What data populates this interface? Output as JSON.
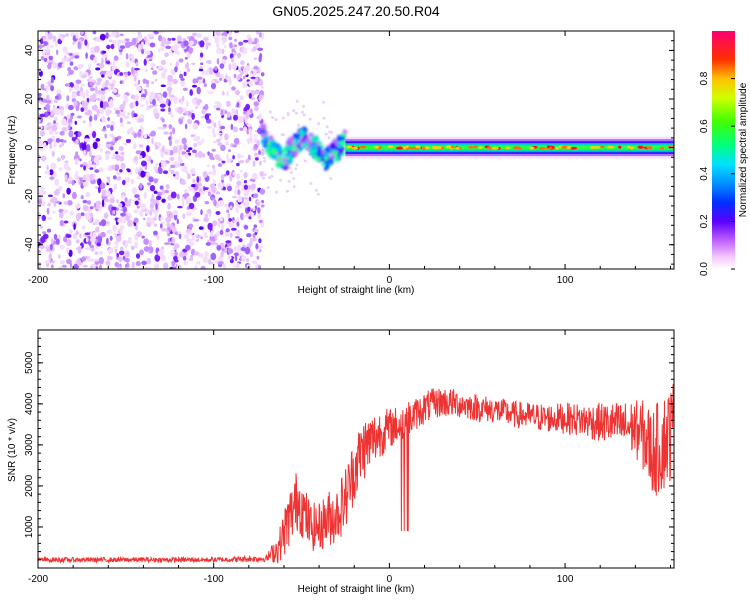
{
  "title": "GN05.2025.247.20.50.R04",
  "chart_data": [
    {
      "type": "heatmap",
      "name": "spectrogram",
      "xlabel": "Height of straight line (km)",
      "ylabel": "Frequency (Hz)",
      "xlim": [
        -200,
        162
      ],
      "ylim": [
        -50,
        48
      ],
      "xticks": [
        -200,
        -100,
        0,
        100
      ],
      "yticks": [
        -40,
        -20,
        0,
        20,
        40
      ],
      "colorbar": {
        "label": "Normalized spectral amplitude",
        "range": [
          0.0,
          1.0
        ],
        "ticks": [
          0.0,
          0.2,
          0.4,
          0.6,
          0.8
        ],
        "tick_labels": [
          "0.0",
          "0.2",
          "0.4",
          "0.6",
          "0.8"
        ]
      },
      "regions": [
        {
          "desc": "broadband noise",
          "x_range": [
            -200,
            -72
          ],
          "y_range": [
            -50,
            48
          ]
        },
        {
          "desc": "multipath zigzag",
          "x_range": [
            -72,
            -25
          ],
          "y_range": [
            -15,
            12
          ]
        },
        {
          "desc": "carrier line",
          "x_range": [
            -25,
            162
          ],
          "y_center": 0,
          "y_halfwidth": 4
        }
      ],
      "colors": [
        "#ffffff",
        "#f0d0ff",
        "#c080ff",
        "#7a1aff",
        "#3a00e0",
        "#0044ff",
        "#00aaff",
        "#00e0c0",
        "#00ff60",
        "#80ff00",
        "#ffff00",
        "#ffa000",
        "#ff3000",
        "#ff00a0"
      ]
    },
    {
      "type": "line",
      "name": "snr",
      "xlabel": "Height of straight line (km)",
      "ylabel": "SNR (10 * v/v)",
      "xlim": [
        -200,
        162
      ],
      "ylim": [
        0,
        5800
      ],
      "xticks": [
        -200,
        -100,
        0,
        100
      ],
      "yticks": [
        1000,
        2000,
        3000,
        4000,
        5000
      ],
      "series": [
        {
          "name": "SNR",
          "color": "#ee3333",
          "x": [
            -200,
            -150,
            -100,
            -70,
            -63,
            -58,
            -52,
            -45,
            -40,
            -35,
            -30,
            -25,
            -20,
            -15,
            -10,
            -5,
            0,
            5,
            10,
            15,
            20,
            25,
            30,
            40,
            50,
            60,
            70,
            80,
            90,
            100,
            110,
            120,
            130,
            140,
            145,
            150,
            155,
            160,
            162
          ],
          "y": [
            200,
            200,
            200,
            230,
            500,
            1100,
            1700,
            1000,
            1000,
            1200,
            1300,
            1700,
            2400,
            2900,
            3100,
            3300,
            3400,
            3500,
            3600,
            3750,
            3900,
            4000,
            4050,
            4000,
            3900,
            3850,
            3750,
            3700,
            3650,
            3650,
            3600,
            3550,
            3500,
            3400,
            3200,
            2800,
            3000,
            3300,
            3500
          ],
          "noise": [
            60,
            60,
            60,
            80,
            400,
            700,
            800,
            600,
            600,
            700,
            700,
            800,
            800,
            800,
            700,
            600,
            500,
            450,
            450,
            400,
            400,
            380,
            380,
            350,
            330,
            330,
            330,
            340,
            350,
            380,
            420,
            480,
            550,
            700,
            900,
            1100,
            1200,
            1200,
            1200
          ]
        }
      ]
    }
  ]
}
